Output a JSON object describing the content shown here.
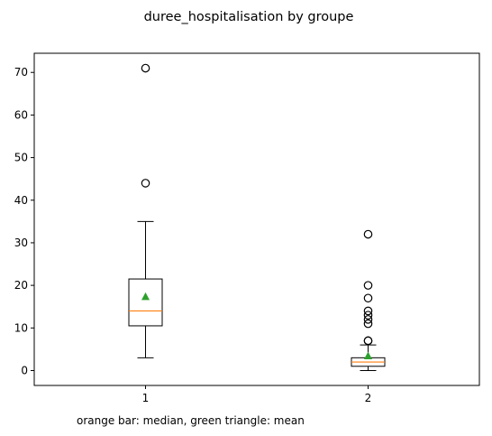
{
  "chart_data": {
    "type": "box",
    "title": "duree_hospitalisation by groupe",
    "xlabel": "",
    "ylabel": "",
    "categories": [
      "1",
      "2"
    ],
    "ylim": [
      -3.5,
      74.5
    ],
    "yticks": [
      0,
      10,
      20,
      30,
      40,
      50,
      60,
      70
    ],
    "grid": false,
    "series": [
      {
        "category": "1",
        "whisker_low": 3,
        "q1": 10.5,
        "median": 14,
        "q3": 21.5,
        "whisker_high": 35,
        "mean": 17.3,
        "outliers": [
          44,
          71
        ]
      },
      {
        "category": "2",
        "whisker_low": 0,
        "q1": 1,
        "median": 2,
        "q3": 3,
        "whisker_high": 6,
        "mean": 3.4,
        "outliers": [
          7,
          7,
          11,
          12,
          13,
          14,
          17,
          20,
          32
        ]
      }
    ],
    "annotation": "orange bar: median, green triangle: mean",
    "colors": {
      "median": "#ff7f0e",
      "mean": "#2ca02c",
      "box": "#000000"
    }
  }
}
